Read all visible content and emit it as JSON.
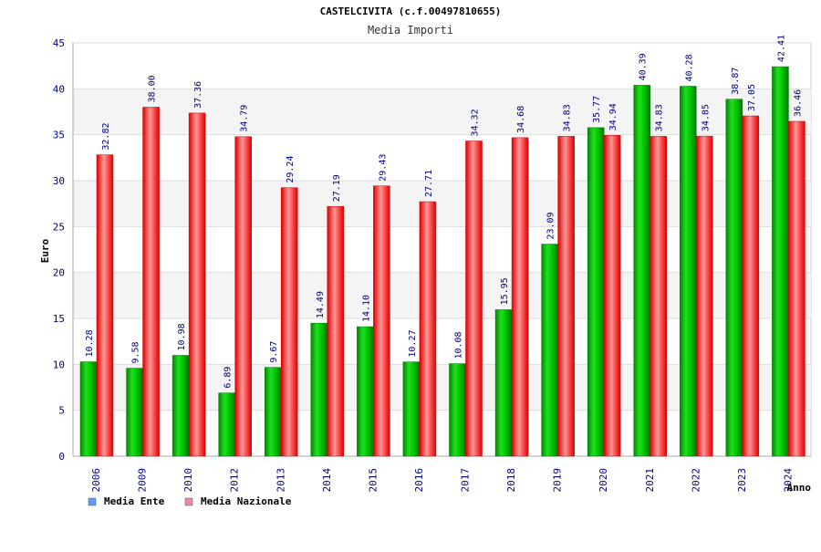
{
  "chart_data": {
    "type": "bar",
    "title": "CASTELCIVITA (c.f.00497810655)",
    "subtitle": "Media Importi",
    "xlabel": "Anno",
    "ylabel": "Euro",
    "ylim": [
      0,
      45
    ],
    "yticks": [
      "0",
      "5",
      "10",
      "15",
      "20",
      "25",
      "30",
      "35",
      "40",
      "45"
    ],
    "grid": true,
    "legend_position": "bottom-left",
    "categories": [
      "2006",
      "2009",
      "2010",
      "2012",
      "2013",
      "2014",
      "2015",
      "2016",
      "2017",
      "2018",
      "2019",
      "2020",
      "2021",
      "2022",
      "2023",
      "2024"
    ],
    "series": [
      {
        "name": "Media Ente",
        "color": "#00aa00",
        "values": [
          10.28,
          9.58,
          10.98,
          6.89,
          9.67,
          14.49,
          14.1,
          10.27,
          10.08,
          15.95,
          23.09,
          35.77,
          40.39,
          40.28,
          38.87,
          42.41
        ],
        "labels": [
          "10.28",
          "9.58",
          "10.98",
          "6.89",
          "9.67",
          "14.49",
          "14.10",
          "10.27",
          "10.08",
          "15.95",
          "23.09",
          "35.77",
          "40.39",
          "40.28",
          "38.87",
          "42.41"
        ]
      },
      {
        "name": "Media Nazionale",
        "color": "#ee1111",
        "values": [
          32.82,
          38.0,
          37.36,
          34.79,
          29.24,
          27.19,
          29.43,
          27.71,
          34.32,
          34.68,
          34.83,
          34.94,
          34.83,
          34.85,
          37.05,
          36.46
        ],
        "labels": [
          "32.82",
          "38.00",
          "37.36",
          "34.79",
          "29.24",
          "27.19",
          "29.43",
          "27.71",
          "34.32",
          "34.68",
          "34.83",
          "34.94",
          "34.83",
          "34.85",
          "37.05",
          "36.46"
        ]
      }
    ],
    "legend_colors": [
      "#6699ff",
      "#ee88aa"
    ]
  }
}
